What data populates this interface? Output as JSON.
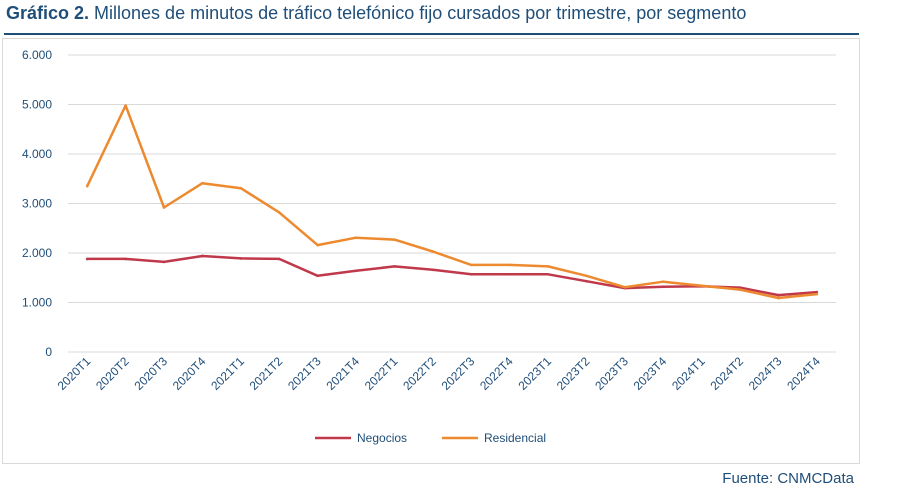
{
  "header": {
    "title_lead": "Gráfico 2.",
    "title_rest": " Millones de minutos de tráfico telefónico fijo cursados por trimestre, por segmento"
  },
  "footer": {
    "source": "Fuente: CNMCData"
  },
  "colors": {
    "negocios": "#c0394b",
    "residencial": "#ed8a2f",
    "grid": "#d9d9d9",
    "axis_text": "#1f4e79"
  },
  "chart_data": {
    "type": "line",
    "categories": [
      "2020T1",
      "2020T2",
      "2020T3",
      "2020T4",
      "2021T1",
      "2021T2",
      "2021T3",
      "2021T4",
      "2022T1",
      "2022T2",
      "2022T3",
      "2022T4",
      "2023T1",
      "2023T2",
      "2023T3",
      "2023T4",
      "2024T1",
      "2024T2",
      "2024T3",
      "2024T4"
    ],
    "y_ticks": [
      "0",
      "1.000",
      "2.000",
      "3.000",
      "4.000",
      "5.000",
      "6.000"
    ],
    "ylim": [
      0,
      6000
    ],
    "grid": true,
    "legend_position": "bottom",
    "series": [
      {
        "name": "Negocios",
        "color": "#c0394b",
        "values": [
          1880,
          1880,
          1820,
          1940,
          1890,
          1880,
          1540,
          1640,
          1730,
          1660,
          1570,
          1570,
          1570,
          1430,
          1290,
          1320,
          1330,
          1300,
          1150,
          1210
        ]
      },
      {
        "name": "Residencial",
        "color": "#ed8a2f",
        "values": [
          3350,
          4980,
          2920,
          3410,
          3310,
          2820,
          2160,
          2310,
          2270,
          2030,
          1760,
          1760,
          1730,
          1540,
          1310,
          1420,
          1340,
          1260,
          1090,
          1170
        ]
      }
    ]
  }
}
